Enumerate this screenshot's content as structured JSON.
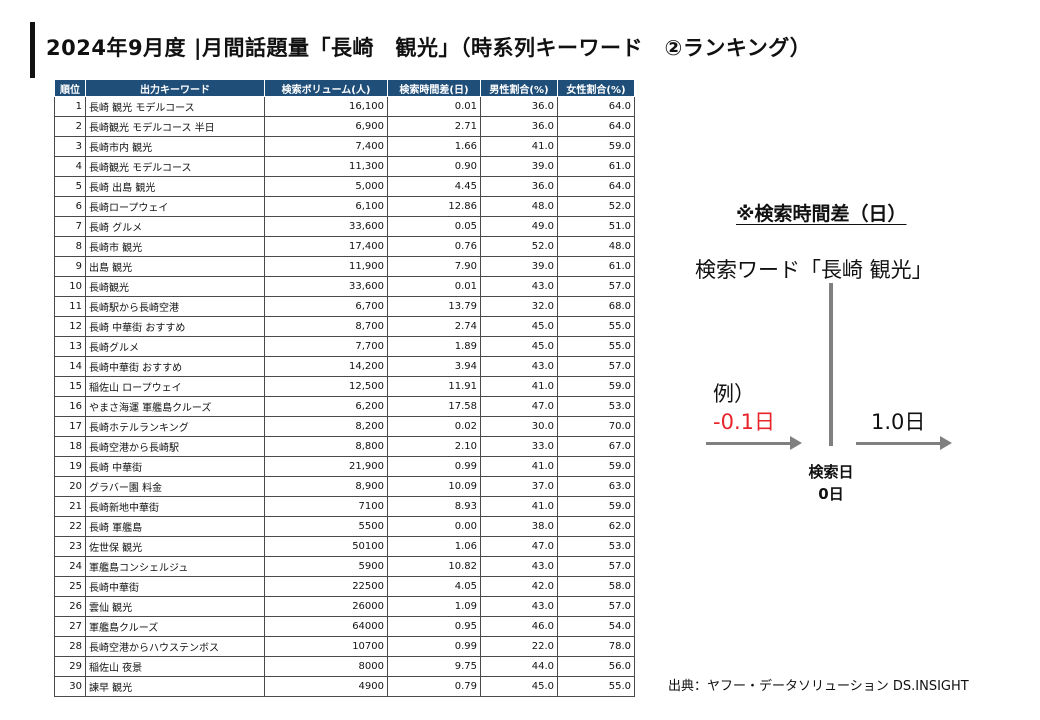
{
  "title": "2024年9月度 |月間話題量「長崎　観光」（時系列キーワード　②ランキング）",
  "table": {
    "headers": [
      "順位",
      "出力キーワード",
      "検索ボリューム(人)",
      "検索時間差(日)",
      "男性割合(%)",
      "女性割合(%)"
    ],
    "rows": [
      [
        "1",
        "長崎 観光 モデルコース",
        "16,100",
        "0.01",
        "36.0",
        "64.0"
      ],
      [
        "2",
        "長崎観光 モデルコース 半日",
        "6,900",
        "2.71",
        "36.0",
        "64.0"
      ],
      [
        "3",
        "長崎市内 観光",
        "7,400",
        "1.66",
        "41.0",
        "59.0"
      ],
      [
        "4",
        "長崎観光 モデルコース",
        "11,300",
        "0.90",
        "39.0",
        "61.0"
      ],
      [
        "5",
        "長崎 出島 観光",
        "5,000",
        "4.45",
        "36.0",
        "64.0"
      ],
      [
        "6",
        "長崎ロープウェイ",
        "6,100",
        "12.86",
        "48.0",
        "52.0"
      ],
      [
        "7",
        "長崎 グルメ",
        "33,600",
        "0.05",
        "49.0",
        "51.0"
      ],
      [
        "8",
        "長崎市 観光",
        "17,400",
        "0.76",
        "52.0",
        "48.0"
      ],
      [
        "9",
        "出島 観光",
        "11,900",
        "7.90",
        "39.0",
        "61.0"
      ],
      [
        "10",
        "長崎観光",
        "33,600",
        "0.01",
        "43.0",
        "57.0"
      ],
      [
        "11",
        "長崎駅から長崎空港",
        "6,700",
        "13.79",
        "32.0",
        "68.0"
      ],
      [
        "12",
        "長崎 中華街 おすすめ",
        "8,700",
        "2.74",
        "45.0",
        "55.0"
      ],
      [
        "13",
        "長崎グルメ",
        "7,700",
        "1.89",
        "45.0",
        "55.0"
      ],
      [
        "14",
        "長崎中華街 おすすめ",
        "14,200",
        "3.94",
        "43.0",
        "57.0"
      ],
      [
        "15",
        "稲佐山 ロープウェイ",
        "12,500",
        "11.91",
        "41.0",
        "59.0"
      ],
      [
        "16",
        "やまさ海運 軍艦島クルーズ",
        "6,200",
        "17.58",
        "47.0",
        "53.0"
      ],
      [
        "17",
        "長崎ホテルランキング",
        "8,200",
        "0.02",
        "30.0",
        "70.0"
      ],
      [
        "18",
        "長崎空港から長崎駅",
        "8,800",
        "2.10",
        "33.0",
        "67.0"
      ],
      [
        "19",
        "長崎 中華街",
        "21,900",
        "0.99",
        "41.0",
        "59.0"
      ],
      [
        "20",
        "グラバー園 料金",
        "8,900",
        "10.09",
        "37.0",
        "63.0"
      ],
      [
        "21",
        "長崎新地中華街",
        "7100",
        "8.93",
        "41.0",
        "59.0"
      ],
      [
        "22",
        "長崎 軍艦島",
        "5500",
        "0.00",
        "38.0",
        "62.0"
      ],
      [
        "23",
        "佐世保 観光",
        "50100",
        "1.06",
        "47.0",
        "53.0"
      ],
      [
        "24",
        "軍艦島コンシェルジュ",
        "5900",
        "10.82",
        "43.0",
        "57.0"
      ],
      [
        "25",
        "長崎中華街",
        "22500",
        "4.05",
        "42.0",
        "58.0"
      ],
      [
        "26",
        "雲仙 観光",
        "26000",
        "1.09",
        "43.0",
        "57.0"
      ],
      [
        "27",
        "軍艦島クルーズ",
        "64000",
        "0.95",
        "46.0",
        "54.0"
      ],
      [
        "28",
        "長崎空港からハウステンボス",
        "10700",
        "0.99",
        "22.0",
        "78.0"
      ],
      [
        "29",
        "稲佐山 夜景",
        "8000",
        "9.75",
        "44.0",
        "56.0"
      ],
      [
        "30",
        "諫早 観光",
        "4900",
        "0.79",
        "45.0",
        "55.0"
      ]
    ]
  },
  "note": {
    "title": "※検索時間差（日）",
    "search_word": "検索ワード「長崎 観光」",
    "example_label": "例）",
    "example_negative": "-0.1日",
    "example_positive": "1.0日",
    "search_day_label": "検索日",
    "search_day_value": "0日"
  },
  "colors": {
    "header_bg": "#1f4e79",
    "negative": "#e8242a",
    "axis": "#808080"
  },
  "source": "出典：ヤフー・データソリューション DS.INSIGHT"
}
